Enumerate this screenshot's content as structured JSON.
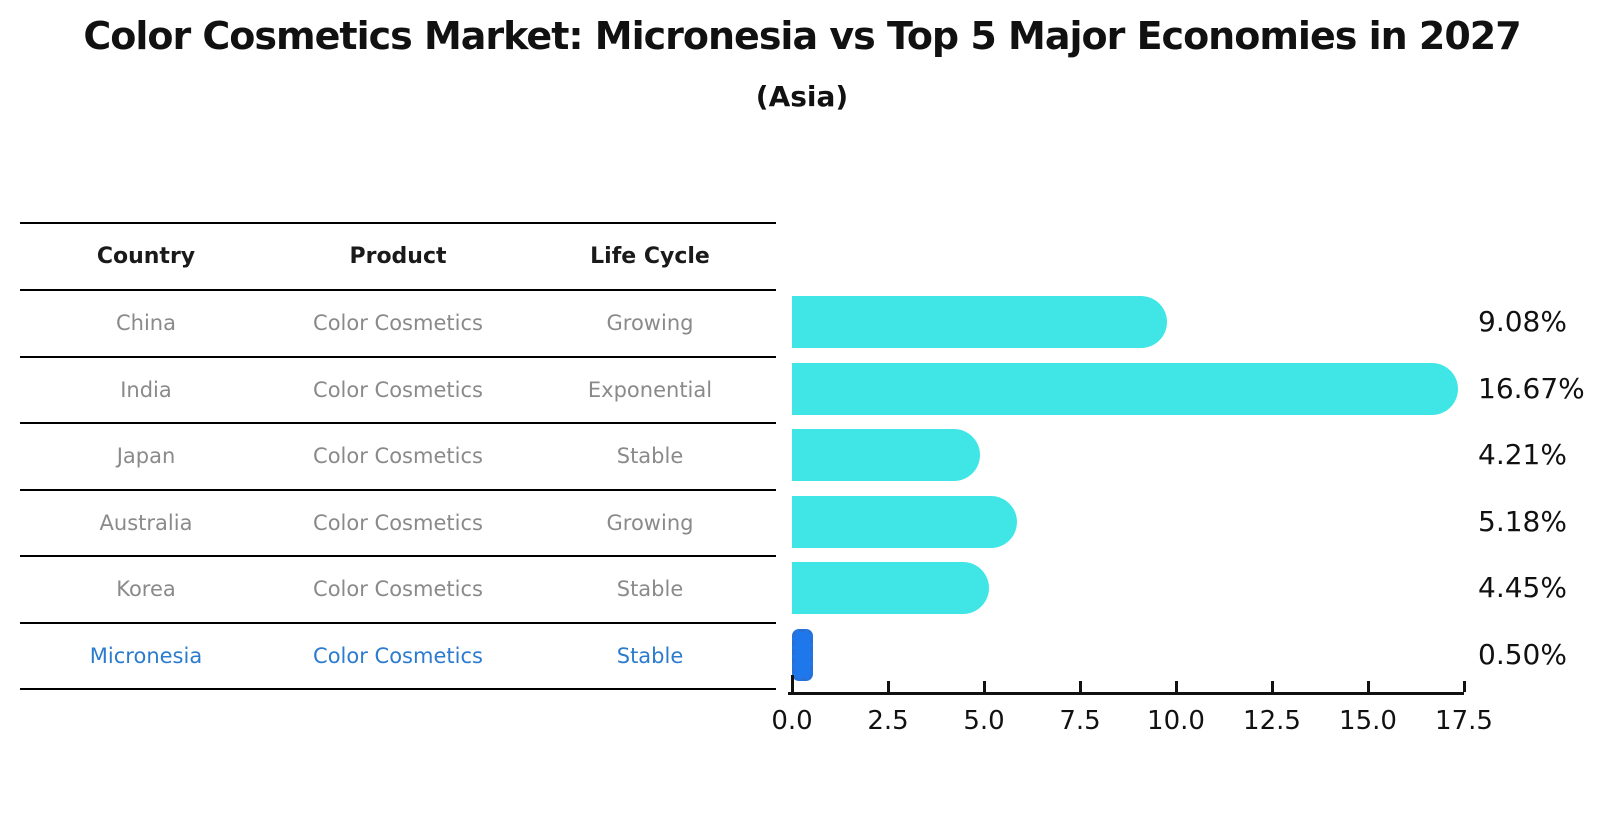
{
  "title": "Color Cosmetics Market: Micronesia vs Top 5 Major Economies in 2027",
  "subtitle": "(Asia)",
  "table": {
    "headers": [
      "Country",
      "Product",
      "Life Cycle"
    ],
    "rows": [
      {
        "country": "China",
        "product": "Color Cosmetics",
        "life_cycle": "Growing",
        "highlighted": false
      },
      {
        "country": "India",
        "product": "Color Cosmetics",
        "life_cycle": "Exponential",
        "highlighted": false
      },
      {
        "country": "Japan",
        "product": "Color Cosmetics",
        "life_cycle": "Stable",
        "highlighted": false
      },
      {
        "country": "Australia",
        "product": "Color Cosmetics",
        "life_cycle": "Growing",
        "highlighted": false
      },
      {
        "country": "Korea",
        "product": "Color Cosmetics",
        "life_cycle": "Stable",
        "highlighted": false
      },
      {
        "country": "Micronesia",
        "product": "Color Cosmetics",
        "life_cycle": "Stable",
        "highlighted": true
      }
    ]
  },
  "chart_data": {
    "type": "bar",
    "orientation": "horizontal",
    "title": "Color Cosmetics Market: Micronesia vs Top 5 Major Economies in 2027 (Asia)",
    "categories": [
      "China",
      "India",
      "Japan",
      "Australia",
      "Korea",
      "Micronesia"
    ],
    "values": [
      9.08,
      16.67,
      4.21,
      5.18,
      4.45,
      0.5
    ],
    "labels": [
      "9.08%",
      "16.67%",
      "4.21%",
      "5.18%",
      "4.45%",
      "0.50%"
    ],
    "xlim": [
      0,
      17.5
    ],
    "x_ticks": [
      "0.0",
      "2.5",
      "5.0",
      "7.5",
      "10.0",
      "12.5",
      "15.0",
      "17.5"
    ],
    "grid": false,
    "legend": "none",
    "bar_color": "#40e6e6",
    "highlight_color": "#1f78eb",
    "highlight_index": 5
  },
  "colors": {
    "text_primary": "#111111",
    "table_text": "#8a8a8a",
    "highlight_text": "#2b7bce",
    "axis": "#111111"
  }
}
